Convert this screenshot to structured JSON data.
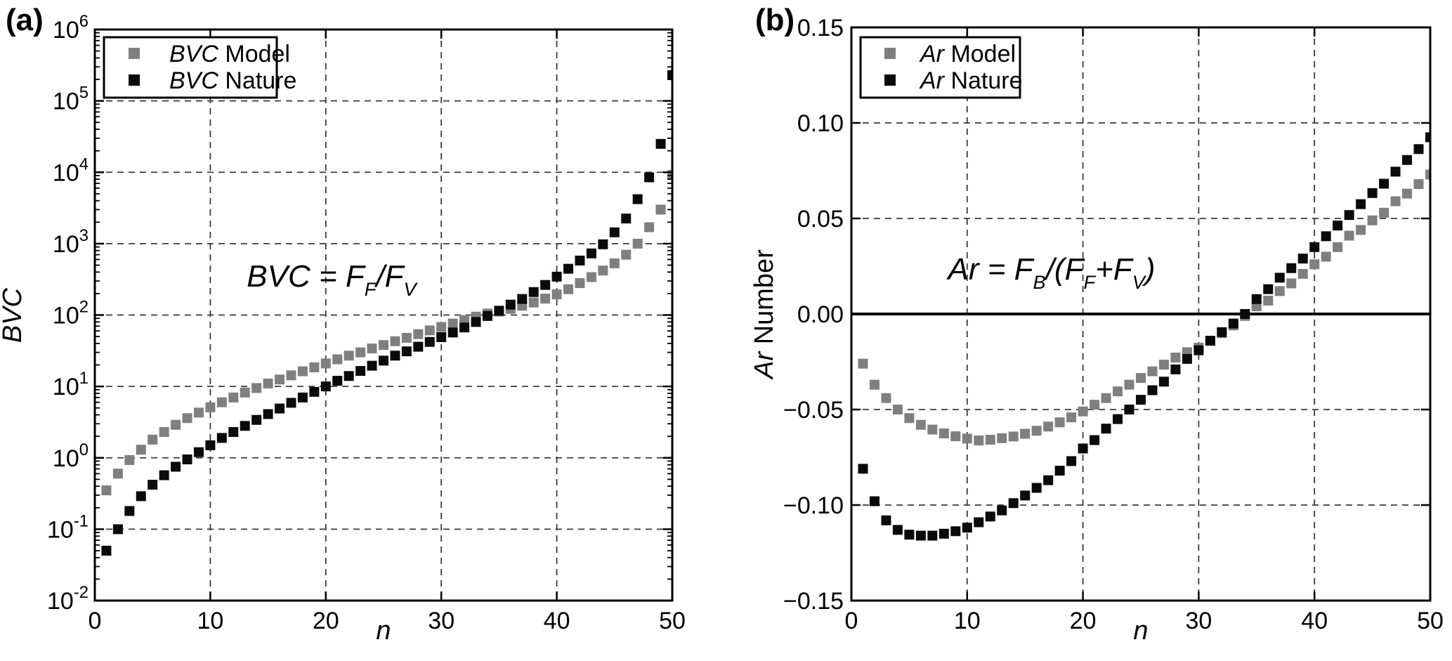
{
  "figure": {
    "background": "#ffffff",
    "panel_a_label": "(a)",
    "panel_b_label": "(b)"
  },
  "chart_data": [
    {
      "id": "a",
      "type": "scatter",
      "marker": "square",
      "x_label_parts": [
        {
          "t": "n",
          "italic": true
        }
      ],
      "y_label_parts": [
        {
          "t": "BVC",
          "italic": true
        }
      ],
      "x_range": [
        0,
        50
      ],
      "x_ticks": [
        {
          "v": 0,
          "label": "0"
        },
        {
          "v": 10,
          "label": "10"
        },
        {
          "v": 20,
          "label": "20"
        },
        {
          "v": 30,
          "label": "30"
        },
        {
          "v": 40,
          "label": "40"
        },
        {
          "v": 50,
          "label": "50"
        }
      ],
      "y_scale": "log",
      "y_range_exp": [
        -2,
        6
      ],
      "y_ticks_exp": [
        {
          "exp": "6"
        },
        {
          "exp": "5"
        },
        {
          "exp": "4"
        },
        {
          "exp": "3"
        },
        {
          "exp": "2"
        },
        {
          "exp": "1"
        },
        {
          "exp": "0"
        },
        {
          "exp": "-1"
        },
        {
          "exp": "-2"
        }
      ],
      "grid": {
        "x_values": [
          10,
          20,
          30,
          40
        ],
        "y_values_exp": [
          -1,
          0,
          1,
          2,
          3,
          4,
          5
        ],
        "style": "dashed"
      },
      "zero_line": false,
      "annotation": {
        "text": "BVC = F_F/F_V",
        "parts": [
          {
            "t": "BVC = F",
            "italic": true
          },
          {
            "t": "F",
            "italic": true,
            "sub": true
          },
          {
            "t": "/F",
            "italic": true
          },
          {
            "t": "V",
            "italic": true,
            "sub": true
          }
        ]
      },
      "legend": {
        "position": "top-left",
        "entries": [
          {
            "color": "#7f7f7f",
            "label": "BVC Model",
            "parts": [
              {
                "t": "BVC",
                "italic": true
              },
              {
                "t": " Model"
              }
            ]
          },
          {
            "color": "#0a0a0a",
            "label": "BVC Nature",
            "parts": [
              {
                "t": "BVC",
                "italic": true
              },
              {
                "t": " Nature"
              }
            ]
          }
        ]
      },
      "x": [
        1,
        2,
        3,
        4,
        5,
        6,
        7,
        8,
        9,
        10,
        11,
        12,
        13,
        14,
        15,
        16,
        17,
        18,
        19,
        20,
        21,
        22,
        23,
        24,
        25,
        26,
        27,
        28,
        29,
        30,
        31,
        32,
        33,
        34,
        35,
        36,
        37,
        38,
        39,
        40,
        41,
        42,
        43,
        44,
        45,
        46,
        47,
        48,
        49,
        50
      ],
      "series": [
        {
          "name": "BVC Model",
          "color": "#7f7f7f",
          "y": [
            0.35,
            0.6,
            0.93,
            1.3,
            1.8,
            2.3,
            2.9,
            3.6,
            4.3,
            5.1,
            6.0,
            7.0,
            8.2,
            9.5,
            11.0,
            12.5,
            14.3,
            16.3,
            18.5,
            21,
            24,
            27,
            30,
            34,
            38,
            43,
            48,
            54,
            61,
            68,
            76,
            85,
            95,
            105,
            112,
            122,
            135,
            150,
            170,
            195,
            230,
            280,
            340,
            420,
            530,
            700,
            1000,
            1700,
            3000,
            9200
          ]
        },
        {
          "name": "BVC Nature",
          "color": "#0a0a0a",
          "y": [
            0.05,
            0.1,
            0.18,
            0.29,
            0.42,
            0.57,
            0.75,
            0.95,
            1.2,
            1.5,
            1.9,
            2.3,
            2.8,
            3.4,
            4.1,
            4.9,
            5.9,
            7.0,
            8.4,
            10,
            12,
            14,
            16.5,
            19.5,
            23,
            27,
            31,
            36,
            42,
            49,
            57,
            67,
            80,
            97,
            115,
            140,
            168,
            210,
            264,
            345,
            445,
            580,
            730,
            980,
            1440,
            2250,
            4200,
            8500,
            25000,
            230000
          ]
        }
      ]
    },
    {
      "id": "b",
      "type": "scatter",
      "marker": "square",
      "x_label_parts": [
        {
          "t": "n",
          "italic": true
        }
      ],
      "y_label_parts": [
        {
          "t": "Ar",
          "italic": true
        },
        {
          "t": " Number"
        }
      ],
      "x_range": [
        0,
        50
      ],
      "x_ticks": [
        {
          "v": 0,
          "label": "0"
        },
        {
          "v": 10,
          "label": "10"
        },
        {
          "v": 20,
          "label": "20"
        },
        {
          "v": 30,
          "label": "30"
        },
        {
          "v": 40,
          "label": "40"
        },
        {
          "v": 50,
          "label": "50"
        }
      ],
      "y_scale": "linear",
      "y_range": [
        -0.15,
        0.15
      ],
      "y_ticks": [
        {
          "v": 0.15,
          "label": "0.15"
        },
        {
          "v": 0.1,
          "label": "0.10"
        },
        {
          "v": 0.05,
          "label": "0.05"
        },
        {
          "v": 0.0,
          "label": "0.00"
        },
        {
          "v": -0.05,
          "label": "−0.05"
        },
        {
          "v": -0.1,
          "label": "−0.10"
        },
        {
          "v": -0.15,
          "label": "−0.15"
        }
      ],
      "grid": {
        "x_values": [
          10,
          20,
          30,
          40
        ],
        "y_values": [
          0.1,
          0.05,
          -0.05,
          -0.1
        ],
        "style": "dashed"
      },
      "zero_line": true,
      "annotation": {
        "text": "Ar = F_B/(F_F+F_V)",
        "parts": [
          {
            "t": "Ar = F",
            "italic": true
          },
          {
            "t": "B",
            "italic": true,
            "sub": true
          },
          {
            "t": "/(F",
            "italic": true
          },
          {
            "t": "F",
            "italic": true,
            "sub": true
          },
          {
            "t": "+F",
            "italic": true
          },
          {
            "t": "V",
            "italic": true,
            "sub": true
          },
          {
            "t": ")",
            "italic": true
          }
        ]
      },
      "legend": {
        "position": "top-left",
        "entries": [
          {
            "color": "#7f7f7f",
            "label": "Ar Model",
            "parts": [
              {
                "t": "Ar",
                "italic": true
              },
              {
                "t": "  Model"
              }
            ]
          },
          {
            "color": "#0a0a0a",
            "label": "Ar Nature",
            "parts": [
              {
                "t": "Ar",
                "italic": true
              },
              {
                "t": "  Nature"
              }
            ]
          }
        ]
      },
      "x": [
        1,
        2,
        3,
        4,
        5,
        6,
        7,
        8,
        9,
        10,
        11,
        12,
        13,
        14,
        15,
        16,
        17,
        18,
        19,
        20,
        21,
        22,
        23,
        24,
        25,
        26,
        27,
        28,
        29,
        30,
        31,
        32,
        33,
        34,
        35,
        36,
        37,
        38,
        39,
        40,
        41,
        42,
        43,
        44,
        45,
        46,
        47,
        48,
        49,
        50
      ],
      "series": [
        {
          "name": "Ar Model",
          "color": "#7f7f7f",
          "y": [
            -0.026,
            -0.037,
            -0.044,
            -0.05,
            -0.0545,
            -0.058,
            -0.0605,
            -0.0625,
            -0.064,
            -0.0652,
            -0.0662,
            -0.0658,
            -0.065,
            -0.0641,
            -0.0627,
            -0.0611,
            -0.0589,
            -0.0567,
            -0.0541,
            -0.051,
            -0.0475,
            -0.044,
            -0.0405,
            -0.037,
            -0.0335,
            -0.03,
            -0.0265,
            -0.0228,
            -0.02,
            -0.0176,
            -0.014,
            -0.01,
            -0.006,
            -0.001,
            0.004,
            0.007,
            0.012,
            0.016,
            0.021,
            0.026,
            0.03,
            0.035,
            0.041,
            0.044,
            0.049,
            0.053,
            0.059,
            0.063,
            0.068,
            0.073
          ]
        },
        {
          "name": "Ar Nature",
          "color": "#0a0a0a",
          "y": [
            -0.081,
            -0.098,
            -0.108,
            -0.113,
            -0.1155,
            -0.116,
            -0.116,
            -0.115,
            -0.1137,
            -0.1118,
            -0.109,
            -0.106,
            -0.1028,
            -0.099,
            -0.095,
            -0.091,
            -0.087,
            -0.082,
            -0.077,
            -0.0704,
            -0.066,
            -0.06,
            -0.055,
            -0.05,
            -0.0449,
            -0.0399,
            -0.0354,
            -0.029,
            -0.0235,
            -0.019,
            -0.014,
            -0.0095,
            -0.005,
            0.0,
            0.0078,
            0.013,
            0.019,
            0.024,
            0.029,
            0.035,
            0.0407,
            0.0463,
            0.0518,
            0.0575,
            0.0633,
            0.0682,
            0.0745,
            0.0806,
            0.0863,
            0.0925
          ]
        }
      ]
    }
  ]
}
